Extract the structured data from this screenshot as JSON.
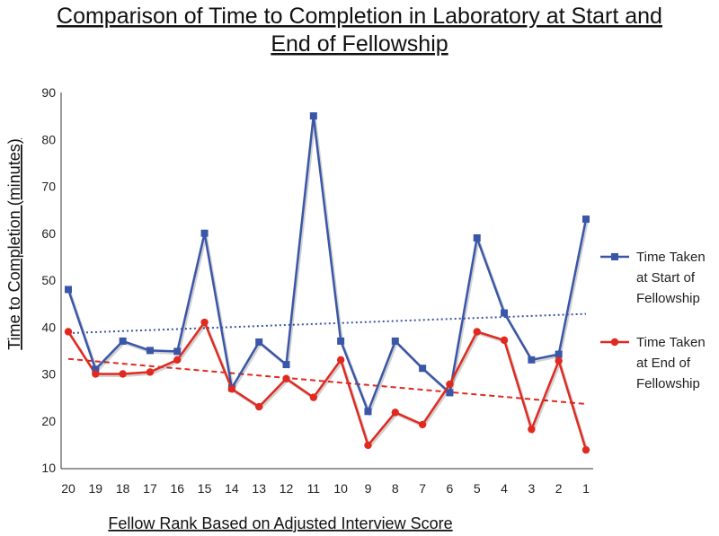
{
  "chart_data": {
    "type": "line",
    "title_lines": [
      "Comparison of Time to Completion in Laboratory at Start and",
      "End of Fellowship"
    ],
    "xlabel": "Fellow Rank Based on Adjusted Interview Score",
    "ylabel": "Time to Completion (minutes)",
    "categories": [
      "20",
      "19",
      "18",
      "17",
      "16",
      "15",
      "14",
      "13",
      "12",
      "11",
      "10",
      "9",
      "8",
      "7",
      "6",
      "5",
      "4",
      "3",
      "2",
      "1"
    ],
    "ylim": [
      10,
      90
    ],
    "yticks": [
      10,
      20,
      30,
      40,
      50,
      60,
      70,
      80,
      90
    ],
    "grid": false,
    "legend_position": "right",
    "series": [
      {
        "name": "Time Taken at Start of Fellowship",
        "legend_lines": [
          "Time Taken",
          "at Start of",
          "Fellowship"
        ],
        "color": "#3a56a8",
        "marker": "square",
        "values": [
          48,
          31,
          37,
          35,
          34.8,
          60,
          27,
          36.8,
          32,
          85,
          37,
          22,
          37,
          31.2,
          26,
          59,
          43,
          33,
          34.2,
          63
        ],
        "trendline": {
          "style": "dotted",
          "start": 38.7,
          "end": 42.8
        }
      },
      {
        "name": "Time Taken at End of Fellowship",
        "legend_lines": [
          "Time Taken",
          "at End of",
          "Fellowship"
        ],
        "color": "#e02a20",
        "marker": "circle",
        "values": [
          39,
          30,
          30,
          30.4,
          33,
          41,
          26.8,
          23,
          29,
          25,
          33,
          14.8,
          21.8,
          19.2,
          27.8,
          39,
          37.2,
          18.2,
          32.8,
          13.8
        ],
        "trendline": {
          "style": "dashed",
          "start": 33.2,
          "end": 23.6
        }
      }
    ]
  }
}
